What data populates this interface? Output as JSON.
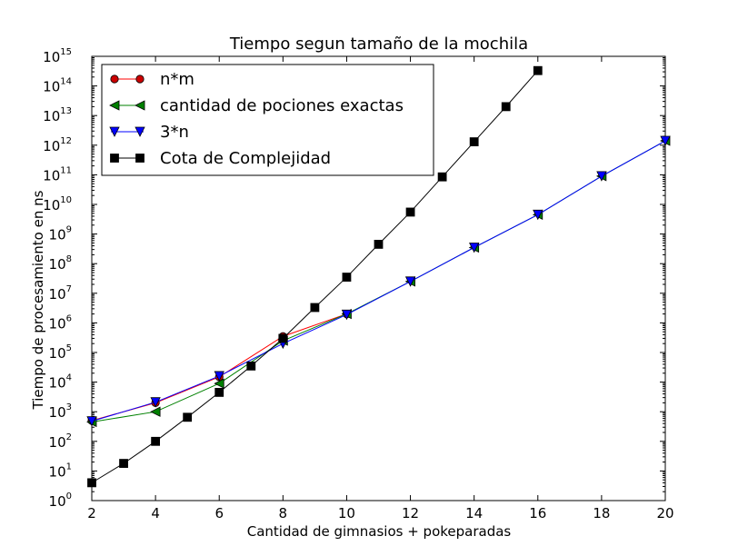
{
  "chart_data": {
    "type": "line",
    "title": "Tiempo segun tamaño de la mochila",
    "xlabel": "Cantidad de gimnasios + pokeparadas",
    "ylabel": "Tiempo de procesamiento en ns",
    "xlim": [
      2,
      20
    ],
    "ylim": [
      1,
      1000000000000000.0
    ],
    "yscale": "log",
    "grid": false,
    "legend_position": "top-left",
    "x_ticks": [
      2,
      4,
      6,
      8,
      10,
      12,
      14,
      16,
      18,
      20
    ],
    "y_tick_base": "10",
    "y_tick_exponents": [
      "0",
      "1",
      "2",
      "3",
      "4",
      "5",
      "6",
      "7",
      "8",
      "9",
      "10",
      "11",
      "12",
      "13",
      "14",
      "15"
    ],
    "series": [
      {
        "name": "n*m",
        "color": "#ff0000",
        "marker": "circle",
        "marker_color": "#cc0000",
        "x": [
          2,
          4,
          6,
          8,
          10
        ],
        "y": [
          500,
          2000,
          15000,
          350000,
          2000000
        ]
      },
      {
        "name": "cantidad de pociones exactas",
        "color": "#008000",
        "marker": "triangle-left",
        "marker_color": "#008000",
        "x": [
          2,
          4,
          6,
          8,
          10,
          12,
          14,
          16,
          18,
          20
        ],
        "y": [
          450,
          1000,
          9000,
          250000,
          2000000,
          25000000,
          350000000,
          4500000000,
          90000000000,
          1400000000000
        ]
      },
      {
        "name": "3*n",
        "color": "#0000ff",
        "marker": "triangle-down",
        "marker_color": "#0000ff",
        "x": [
          2,
          4,
          6,
          8,
          10,
          12,
          14,
          16,
          18,
          20
        ],
        "y": [
          480,
          2100,
          16000,
          200000,
          1900000,
          25000000,
          350000000,
          4500000000,
          90000000000,
          1400000000000
        ]
      },
      {
        "name": "Cota de Complejidad",
        "color": "#000000",
        "marker": "square",
        "marker_color": "#000000",
        "x": [
          2,
          3,
          4,
          5,
          6,
          7,
          8,
          9,
          10,
          11,
          12,
          13,
          14,
          15,
          16
        ],
        "y": [
          4,
          18,
          100,
          650,
          4500,
          35000,
          300000,
          3300000,
          35000000,
          450000000,
          5500000000,
          85000000000,
          1300000000000,
          20000000000000,
          330000000000000
        ]
      }
    ]
  }
}
